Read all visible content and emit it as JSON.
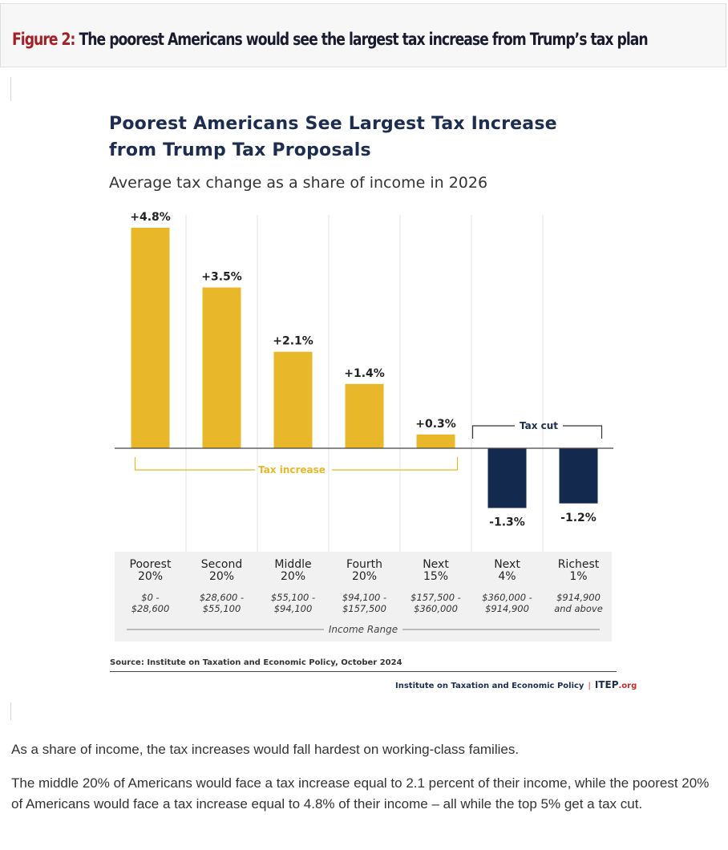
{
  "figure": {
    "label": "Figure 2:",
    "title": "The poorest Americans would see the largest tax increase from Trump’s tax plan"
  },
  "chart_data": {
    "type": "bar",
    "title_line1": "Poorest Americans See Largest Tax Increase",
    "title_line2": "from Trump Tax Proposals",
    "subtitle": "Average tax change as a share of income in 2026",
    "categories": [
      {
        "line1": "Poorest",
        "line2": "20%",
        "range1": "$0 -",
        "range2": "$28,600"
      },
      {
        "line1": "Second",
        "line2": "20%",
        "range1": "$28,600 -",
        "range2": "$55,100"
      },
      {
        "line1": "Middle",
        "line2": "20%",
        "range1": "$55,100 -",
        "range2": "$94,100"
      },
      {
        "line1": "Fourth",
        "line2": "20%",
        "range1": "$94,100 -",
        "range2": "$157,500"
      },
      {
        "line1": "Next",
        "line2": "15%",
        "range1": "$157,500 -",
        "range2": "$360,000"
      },
      {
        "line1": "Next",
        "line2": "4%",
        "range1": "$360,000 -",
        "range2": "$914,900"
      },
      {
        "line1": "Richest",
        "line2": "1%",
        "range1": "$914,900",
        "range2": "and above"
      }
    ],
    "values": [
      4.8,
      3.5,
      2.1,
      1.4,
      0.3,
      -1.3,
      -1.2
    ],
    "value_labels": [
      "+4.8%",
      "+3.5%",
      "+2.1%",
      "+1.4%",
      "+0.3%",
      "-1.3%",
      "-1.2%"
    ],
    "bracket_increase_label": "Tax increase",
    "bracket_cut_label": "Tax cut",
    "axis_footer_label": "Income Range",
    "colors": {
      "increase": "#e8b82a",
      "cut": "#132a4e",
      "bracket_increase": "#e8b82a",
      "bracket_cut": "#333333"
    },
    "grid": false
  },
  "source": "Source: Institute on Taxation and Economic Policy, October 2024",
  "credit": {
    "org": "Institute on Taxation and Economic Policy",
    "logo_main": "ITEP",
    "logo_suffix": ".org"
  },
  "body": {
    "p1": "As a share of income, the tax increases would fall hardest on working-class families.",
    "p2": "The middle 20% of Americans would face a tax increase equal to 2.1 percent of their income, while the poorest 20% of Americans would face a tax increase equal to 4.8% of their income – all while the top 5% get a tax cut."
  }
}
